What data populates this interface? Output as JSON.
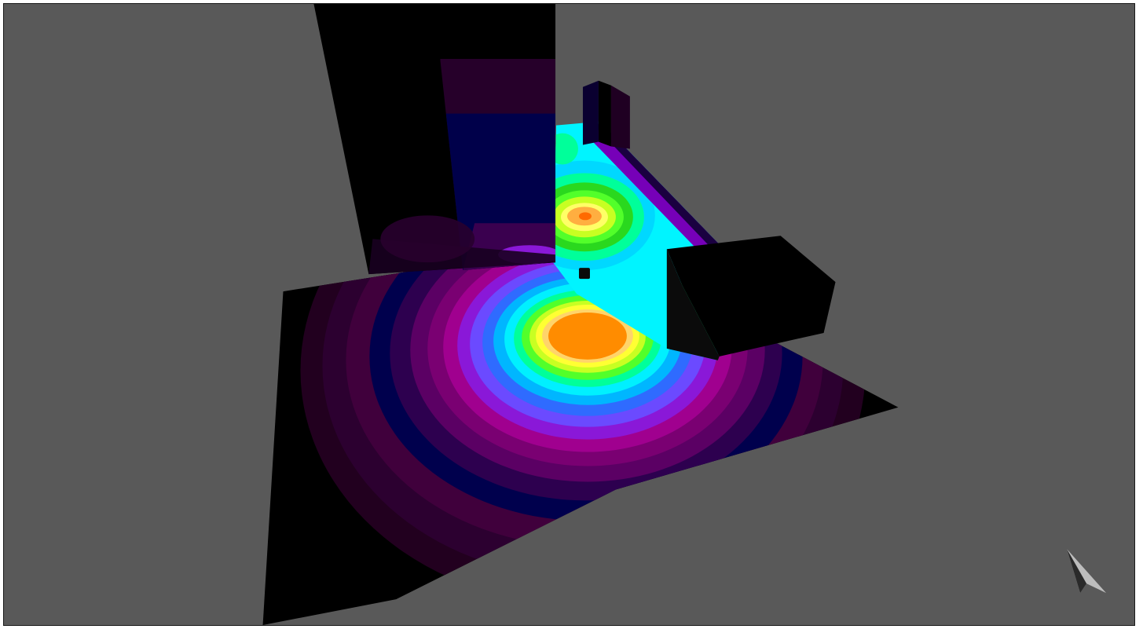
{
  "viewer": {
    "background_color": "#595959",
    "frame_color": "#1a1a1a",
    "surface_color": "#000000"
  },
  "icons": {
    "orientation_indicator": "navigation-arrow-icon",
    "light_source": "light-source-icon"
  },
  "scene": {
    "objects": [
      "floor-slab",
      "rear-wall",
      "back-corridor-floor",
      "small-block",
      "tall-pillars",
      "box-obstacle"
    ],
    "contour_colormap": [
      "#000000",
      "#2a0035",
      "#3d0050",
      "#5a0069",
      "#80006d",
      "#a0008a",
      "#7a00c8",
      "#6a3cff",
      "#2f6bff",
      "#00a8ff",
      "#00e8ff",
      "#00ff9c",
      "#4cff3c",
      "#bfff22",
      "#ffff33",
      "#ffd84a",
      "#ff8c00"
    ]
  }
}
